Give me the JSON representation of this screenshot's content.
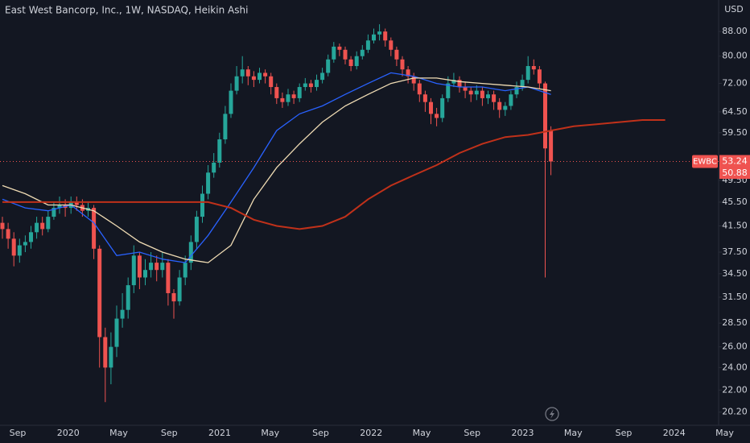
{
  "chart_data": {
    "type": "candlestick",
    "title": "East West Bancorp, Inc., 1W, NASDAQ, Heikin Ashi",
    "currency": "USD",
    "symbol": "EWBC",
    "last_price": 53.24,
    "second_price": 50.88,
    "log_scale": true,
    "ylim": [
      19.2,
      99.4
    ],
    "yticks": [
      {
        "value": 88,
        "label": "88.00"
      },
      {
        "value": 80,
        "label": "80.00"
      },
      {
        "value": 72,
        "label": "72.00"
      },
      {
        "value": 64.5,
        "label": "64.50"
      },
      {
        "value": 59.5,
        "label": "59.50"
      },
      {
        "value": 49.5,
        "label": "49.50"
      },
      {
        "value": 45.5,
        "label": "45.50"
      },
      {
        "value": 41.5,
        "label": "41.50"
      },
      {
        "value": 37.5,
        "label": "37.50"
      },
      {
        "value": 34.5,
        "label": "34.50"
      },
      {
        "value": 31.5,
        "label": "31.50"
      },
      {
        "value": 28.5,
        "label": "28.50"
      },
      {
        "value": 26,
        "label": "26.00"
      },
      {
        "value": 24,
        "label": "24.00"
      },
      {
        "value": 22,
        "label": "22.00"
      },
      {
        "value": 20.2,
        "label": "20.20"
      }
    ],
    "xticks": [
      "Sep",
      "2020",
      "May",
      "Sep",
      "2021",
      "May",
      "Sep",
      "2022",
      "May",
      "Sep",
      "2023",
      "May",
      "Sep",
      "2024",
      "May"
    ],
    "up_color": "#26a69a",
    "down_color": "#ef5350",
    "open": [
      42,
      41,
      39.5,
      37,
      38.5,
      39,
      40.5,
      42,
      41,
      43,
      44.5,
      45,
      44.5,
      45.5,
      45,
      44,
      44.5,
      38,
      27,
      24,
      26,
      29,
      30,
      33,
      37,
      34,
      35,
      36,
      35,
      36,
      32,
      31,
      34,
      36,
      39,
      43,
      47,
      51,
      53,
      58,
      64,
      70,
      74,
      76,
      74,
      73,
      75,
      74,
      71,
      68,
      67,
      69,
      68,
      71,
      72,
      71,
      73,
      75,
      79,
      83,
      82,
      79,
      77,
      80,
      82,
      85,
      87,
      88,
      85,
      82,
      79,
      76,
      74,
      72,
      69,
      67,
      64,
      63,
      68,
      72,
      73,
      71,
      70,
      69,
      70,
      68,
      69,
      67,
      65,
      66,
      69,
      71,
      73,
      77,
      76,
      72,
      60
    ],
    "high": [
      43,
      42,
      40.5,
      39.5,
      40,
      41.5,
      43,
      43,
      44,
      45.5,
      46.5,
      46,
      46.5,
      46.5,
      46,
      45.5,
      45,
      38.5,
      28,
      27.5,
      30.5,
      32,
      34,
      38.5,
      37.5,
      36.5,
      37.5,
      37,
      37.5,
      36.5,
      32.5,
      35,
      37,
      40,
      44,
      48.5,
      52.5,
      55,
      59.5,
      66,
      72,
      77,
      80,
      77,
      75.5,
      76.5,
      76,
      75,
      72,
      69.5,
      70.5,
      70,
      72,
      73.5,
      73,
      74.5,
      76.5,
      80.5,
      84.5,
      84,
      83,
      80,
      81.5,
      83.5,
      87,
      89,
      90.5,
      89,
      86,
      83,
      80,
      77,
      75,
      73,
      70,
      68,
      65.5,
      69,
      74,
      75,
      74,
      72.5,
      71,
      71.5,
      71,
      70,
      70,
      68,
      67,
      70,
      72.5,
      74.5,
      80,
      79,
      77,
      72.5,
      61
    ],
    "low": [
      39.5,
      38,
      35.5,
      36,
      37.5,
      38,
      39.5,
      40,
      40.5,
      42.5,
      43.5,
      43,
      43.5,
      44,
      43,
      43,
      36.5,
      24,
      21,
      22.5,
      25,
      28,
      29,
      32,
      32.5,
      33,
      34,
      33.5,
      34,
      30.5,
      29,
      30.5,
      33,
      35,
      38,
      42,
      46,
      50,
      52,
      57,
      63,
      69,
      72,
      71.5,
      71,
      72,
      72,
      69,
      66.5,
      65.5,
      66,
      66.5,
      67,
      70,
      69.5,
      70,
      72,
      74,
      78,
      80,
      77.5,
      75.5,
      76,
      79,
      81,
      84,
      85,
      83,
      80,
      77,
      74,
      72,
      70,
      67,
      64.5,
      61.5,
      61,
      62,
      67,
      71,
      69.5,
      68,
      67,
      67.5,
      66,
      66.5,
      65,
      63,
      63.5,
      65,
      68,
      70,
      72,
      74.5,
      70.5,
      34,
      50.5
    ],
    "close": [
      41,
      39.5,
      37,
      38.5,
      39,
      40.5,
      42,
      41,
      43,
      44.5,
      45,
      44.5,
      45.5,
      45,
      44,
      44.5,
      38,
      27,
      24,
      26,
      29,
      30,
      33,
      37,
      34,
      35,
      36,
      35,
      36,
      32,
      31,
      34,
      36,
      39,
      43,
      47,
      51,
      53,
      58,
      64,
      70,
      74,
      76,
      74,
      73,
      75,
      74,
      71,
      68,
      67,
      69,
      68,
      71,
      72,
      71,
      73,
      75,
      79,
      83,
      82,
      79,
      77,
      80,
      82,
      85,
      87,
      88,
      85,
      82,
      79,
      76,
      74,
      72,
      69,
      67,
      64,
      63,
      68,
      72,
      73,
      71,
      70,
      69,
      70,
      68,
      69,
      67,
      65,
      66,
      69,
      71,
      73,
      77,
      76,
      72,
      56,
      53.24
    ],
    "series": [
      {
        "color": "#2962ff",
        "values": [
          46,
          44.5,
          44,
          45,
          42,
          37,
          37.5,
          36.5,
          36,
          40,
          45.5,
          52,
          60,
          64,
          66,
          69,
          72,
          75,
          74,
          72,
          71,
          71,
          70,
          71,
          69
        ]
      },
      {
        "color": "#f0dcb4",
        "values": [
          48.5,
          47,
          45,
          45,
          44,
          41.5,
          39,
          37.5,
          36.5,
          36,
          38.5,
          46,
          52,
          57,
          62,
          66,
          69,
          72,
          73.5,
          73.5,
          72.5,
          72,
          71.5,
          71,
          70
        ]
      },
      {
        "color": "#c0311a",
        "values": [
          45.5,
          45.5,
          45.5,
          45.5,
          45.5,
          45.5,
          45.5,
          45.5,
          45.5,
          45.5,
          44.5,
          42.5,
          41.5,
          41,
          41.5,
          43,
          46,
          48.5,
          50.5,
          52.5,
          55,
          57,
          58.5,
          59,
          60,
          61,
          61.5,
          62,
          62.5,
          62.5
        ]
      }
    ]
  }
}
